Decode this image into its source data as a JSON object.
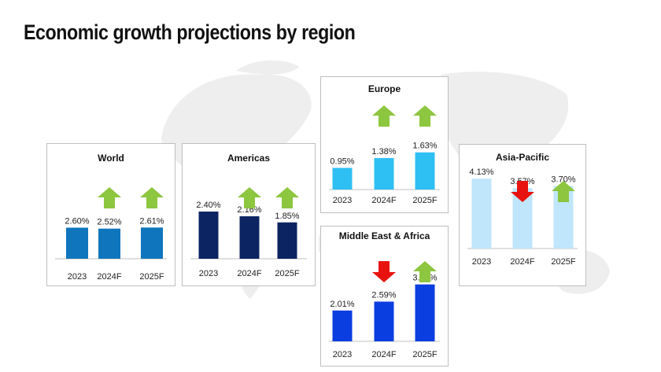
{
  "page": {
    "title": "Economic growth projections by region"
  },
  "colors": {
    "up_arrow": "#8dc63f",
    "down_arrow": "#e8130f",
    "baseline": "#bfbfbf",
    "map": "#eeeeee"
  },
  "chart_data": [
    {
      "type": "bar",
      "title": "World",
      "categories": [
        "2023",
        "2024F",
        "2025F"
      ],
      "values": [
        2.6,
        2.52,
        2.61
      ],
      "value_labels": [
        "2.60%",
        "2.52%",
        "2.61%"
      ],
      "trend": [
        "none",
        "up",
        "up"
      ],
      "bar_color": "#0f75bd"
    },
    {
      "type": "bar",
      "title": "Americas",
      "categories": [
        "2023",
        "2024F",
        "2025F"
      ],
      "values": [
        2.4,
        2.16,
        1.85
      ],
      "value_labels": [
        "2.40%",
        "2.16%",
        "1.85%"
      ],
      "trend": [
        "none",
        "up",
        "up"
      ],
      "bar_color": "#0c2461"
    },
    {
      "type": "bar",
      "title": "Europe",
      "categories": [
        "2023",
        "2024F",
        "2025F"
      ],
      "values": [
        0.95,
        1.38,
        1.63
      ],
      "value_labels": [
        "0.95%",
        "1.38%",
        "1.63%"
      ],
      "trend": [
        "none",
        "up",
        "up"
      ],
      "bar_color": "#2fc0f3"
    },
    {
      "type": "bar",
      "title": "Middle East & Africa",
      "categories": [
        "2023",
        "2024F",
        "2025F"
      ],
      "values": [
        2.01,
        2.59,
        3.71
      ],
      "value_labels": [
        "2.01%",
        "2.59%",
        "3.71%"
      ],
      "trend": [
        "none",
        "down",
        "up"
      ],
      "bar_color": "#0b3ee0"
    },
    {
      "type": "bar",
      "title": "Asia-Pacific",
      "categories": [
        "2023",
        "2024F",
        "2025F"
      ],
      "values": [
        4.13,
        3.57,
        3.7
      ],
      "value_labels": [
        "4.13%",
        "3.57%",
        "3.70%"
      ],
      "trend": [
        "none",
        "down",
        "up"
      ],
      "bar_color": "#bfe6fb"
    }
  ]
}
